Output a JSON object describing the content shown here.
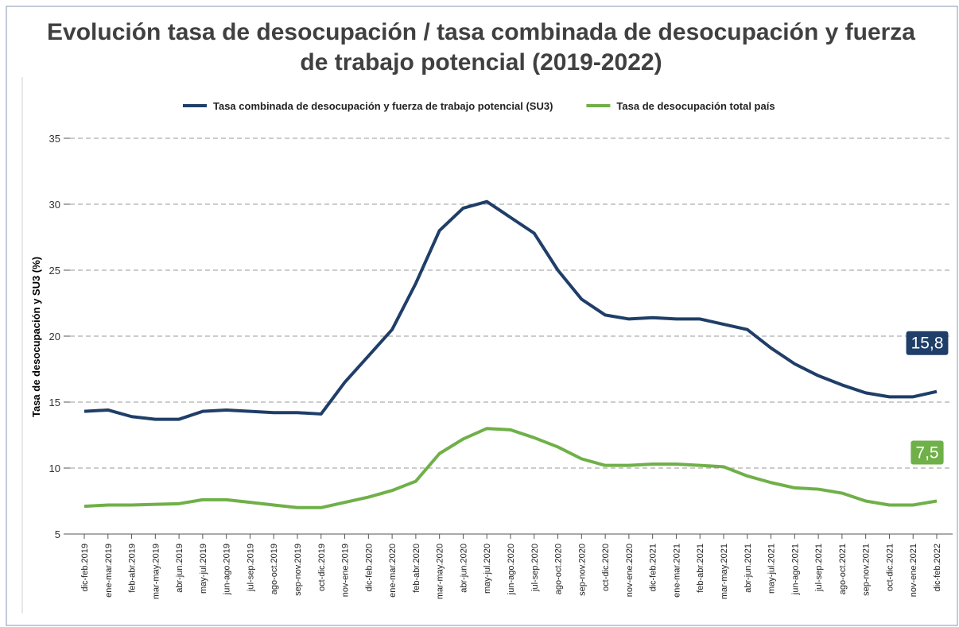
{
  "chart_data": {
    "type": "line",
    "title": "Evolución tasa de desocupación / tasa combinada de desocupación y fuerza de trabajo potencial (2019-2022)",
    "y_label": "Tasa de desocupación y SU3 (%)",
    "categories": [
      "dic-feb.2019",
      "ene-mar.2019",
      "feb-abr.2019",
      "mar-may.2019",
      "abr-jun.2019",
      "may-jul.2019",
      "jun-ago.2019",
      "jul-sep.2019",
      "ago-oct.2019",
      "sep-nov.2019",
      "oct-dic.2019",
      "nov-ene.2019",
      "dic-feb.2020",
      "ene-mar.2020",
      "feb-abr.2020",
      "mar-may.2020",
      "abr-jun.2020",
      "may-jul.2020",
      "jun-ago.2020",
      "jul-sep.2020",
      "ago-oct.2020",
      "sep-nov.2020",
      "oct-dic.2020",
      "nov-ene.2020",
      "dic-feb.2021",
      "ene-mar.2021",
      "feb-abr.2021",
      "mar-may.2021",
      "abr-jun.2021",
      "may-jul.2021",
      "jun-ago.2021",
      "jul-sep.2021",
      "ago-oct.2021",
      "sep-nov.2021",
      "oct-dic.2021",
      "nov-ene.2021",
      "dic-feb.2022"
    ],
    "series": [
      {
        "name": "Tasa combinada de desocupación y fuerza de trabajo potencial (SU3)",
        "color": "#1f3e68",
        "values": [
          14.3,
          14.4,
          13.9,
          13.7,
          13.7,
          14.3,
          14.4,
          14.3,
          14.2,
          14.2,
          14.1,
          16.5,
          18.5,
          20.5,
          24.0,
          28.0,
          29.7,
          30.2,
          29.0,
          27.8,
          25.0,
          22.8,
          21.6,
          21.3,
          21.4,
          21.3,
          21.3,
          20.9,
          20.5,
          19.1,
          17.9,
          17.0,
          16.3,
          15.7,
          15.4,
          15.4,
          15.8
        ],
        "value_labels": [
          null,
          null,
          null,
          null,
          null,
          null,
          null,
          null,
          null,
          null,
          null,
          null,
          null,
          null,
          null,
          null,
          null,
          null,
          null,
          null,
          null,
          null,
          null,
          null,
          null,
          null,
          null,
          null,
          null,
          null,
          null,
          null,
          null,
          null,
          null,
          null,
          "15,8"
        ]
      },
      {
        "name": "Tasa de desocupación total país",
        "color": "#6fb048",
        "values": [
          7.1,
          7.2,
          7.2,
          7.25,
          7.3,
          7.6,
          7.6,
          7.4,
          7.2,
          7.0,
          7.0,
          7.4,
          7.8,
          8.3,
          9.0,
          11.1,
          12.2,
          13.0,
          12.9,
          12.3,
          11.6,
          10.7,
          10.2,
          10.2,
          10.3,
          10.3,
          10.2,
          10.1,
          9.4,
          8.9,
          8.5,
          8.4,
          8.1,
          7.5,
          7.2,
          7.2,
          7.5
        ],
        "value_labels": [
          null,
          null,
          null,
          null,
          null,
          null,
          null,
          null,
          null,
          null,
          null,
          null,
          null,
          null,
          null,
          null,
          null,
          null,
          null,
          null,
          null,
          null,
          null,
          null,
          null,
          null,
          null,
          null,
          null,
          null,
          null,
          null,
          null,
          null,
          null,
          null,
          "7,5"
        ]
      }
    ],
    "ylim": [
      5,
      35
    ],
    "yticks": [
      5,
      10,
      15,
      20,
      25,
      30,
      35
    ],
    "grid": true,
    "legend": "top"
  }
}
